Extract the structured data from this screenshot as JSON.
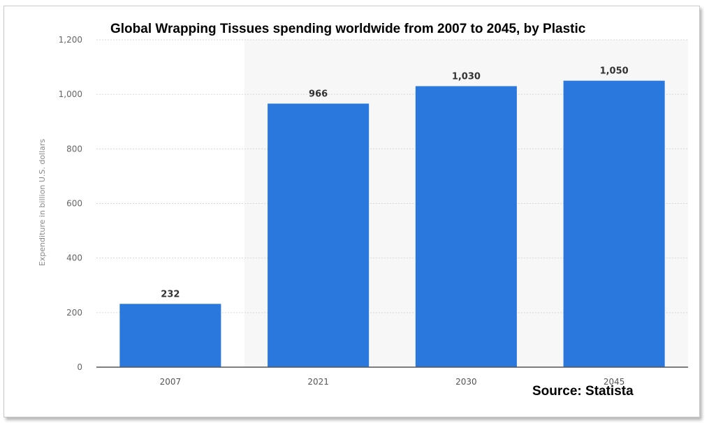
{
  "chart_data": {
    "type": "bar",
    "title": "Global Wrapping Tissues spending worldwide from 2007 to 2045, by Plastic",
    "xlabel": "",
    "ylabel": "Expenditure in billion U.S. dollars",
    "categories": [
      "2007",
      "2021",
      "2030",
      "2045"
    ],
    "values": [
      232,
      966,
      1030,
      1050
    ],
    "value_labels": [
      "232",
      "966",
      "1,030",
      "1,050"
    ],
    "ylim": [
      0,
      1200
    ],
    "yticks": [
      0,
      200,
      400,
      600,
      800,
      1000,
      1200
    ],
    "ytick_labels": [
      "0",
      "200",
      "400",
      "600",
      "800",
      "1,000",
      "1,200"
    ],
    "grid": true,
    "legend": "none",
    "bar_color": "#2a78dd",
    "source": "Source: Statista"
  }
}
